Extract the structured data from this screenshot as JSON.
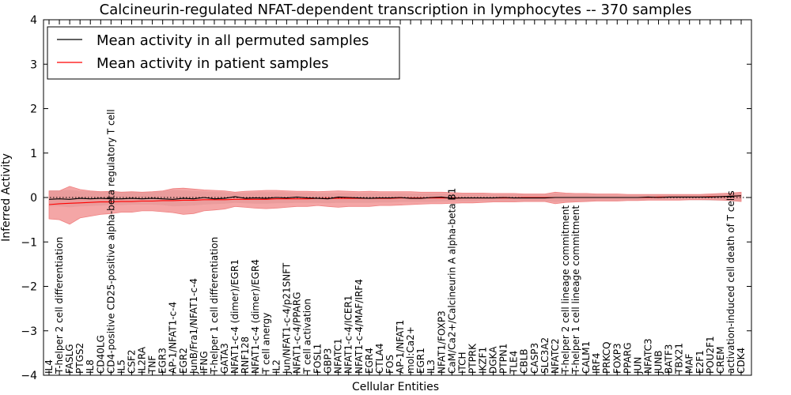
{
  "chart_data": {
    "type": "line",
    "title": "Calcineurin-regulated NFAT-dependent transcription in lymphocytes -- 370 samples",
    "xlabel": "Cellular Entities",
    "ylabel": "Inferred Activity",
    "ylim": [
      -4,
      4
    ],
    "yticks": [
      -4,
      -3,
      -2,
      -1,
      0,
      1,
      2,
      3,
      4
    ],
    "grid": false,
    "legend_position": "top-left",
    "colors": {
      "permuted": "#000000",
      "patient": "#ff0000",
      "band": "#f08080"
    },
    "categories": [
      "IL4",
      "T-helper 2 cell differentiation",
      "FASLG",
      "PTGS2",
      "IL8",
      "CD40LG",
      "CD4-positive CD25-positive alpha-beta regulatory T cell",
      "IL5",
      "CSF2",
      "IL2RA",
      "TNF",
      "EGR3",
      "AP-1/NFAT1-c-4",
      "EGR2",
      "JunB/Fra1/NFAT1-c-4",
      "IFNG",
      "T-helper 1 cell differentiation",
      "GATA3",
      "NFAT1-c-4 (dimer)/EGR1",
      "RNF128",
      "NFAT1-c-4 (dimer)/EGR4",
      "T cell anergy",
      "IL2",
      "Jun/NFAT1-c-4/p21SNFT",
      "NFAT1-c-4/PPARG",
      "T cell activation",
      "FOSL1",
      "GBP3",
      "NFATC1",
      "NFAT1-c-4/ICER1",
      "NFAT1-c-4/MAF/IRF4",
      "EGR4",
      "CTLA4",
      "FOS",
      "AP-1/NFAT1",
      "mol:Ca2+",
      "EGR1",
      "IL3",
      "NFAT1/FOXP3",
      "CaM/Ca2+/Calcineurin A alpha-beta B1",
      "ITCH",
      "PTPRK",
      "IKZF1",
      "DGKA",
      "PTPN1",
      "TLE4",
      "CBLB",
      "CASP3",
      "SLC3A2",
      "NFATC2",
      "T-helper 2 cell lineage commitment",
      "T-helper 1 cell lineage commitment",
      "CALM1",
      "IRF4",
      "PRKCQ",
      "FOXP3",
      "PPARG",
      "JUN",
      "NFATC3",
      "JUNB",
      "BATF3",
      "TBX21",
      "MAF",
      "E2F1",
      "POU2F1",
      "CREM",
      "activation-induced cell death of T cells",
      "CDK4"
    ],
    "series": [
      {
        "name": "Mean activity in all permuted samples",
        "color": "#000000",
        "values": [
          -0.04,
          -0.03,
          -0.04,
          -0.02,
          -0.03,
          -0.02,
          -0.03,
          -0.03,
          -0.02,
          -0.03,
          -0.02,
          -0.03,
          -0.04,
          -0.02,
          -0.03,
          0.0,
          -0.03,
          -0.02,
          0.02,
          -0.02,
          -0.01,
          -0.02,
          0.0,
          -0.01,
          0.01,
          -0.01,
          -0.02,
          -0.03,
          0.01,
          0.0,
          -0.01,
          -0.02,
          -0.01,
          -0.01,
          0.0,
          -0.02,
          -0.02,
          0.0,
          0.01,
          -0.02,
          -0.01,
          -0.01,
          -0.01,
          -0.01,
          0.0,
          -0.01,
          -0.01,
          -0.01,
          -0.01,
          0.0,
          0.0,
          0.0,
          0.0,
          0.0,
          0.0,
          0.0,
          0.0,
          0.0,
          0.01,
          0.0,
          0.01,
          0.01,
          0.01,
          0.01,
          0.01,
          0.02,
          0.03,
          0.04
        ]
      },
      {
        "name": "Mean activity in patient samples",
        "color": "#ff0000",
        "values": [
          -0.16,
          -0.14,
          -0.13,
          -0.12,
          -0.11,
          -0.1,
          -0.1,
          -0.09,
          -0.09,
          -0.08,
          -0.08,
          -0.07,
          -0.07,
          -0.06,
          -0.06,
          -0.05,
          -0.05,
          -0.05,
          -0.04,
          -0.04,
          -0.04,
          -0.04,
          -0.03,
          -0.03,
          -0.03,
          -0.03,
          -0.02,
          -0.02,
          -0.02,
          -0.02,
          -0.02,
          -0.02,
          -0.02,
          -0.02,
          -0.01,
          -0.01,
          -0.01,
          -0.01,
          -0.01,
          -0.01,
          -0.01,
          -0.01,
          -0.01,
          -0.01,
          -0.01,
          -0.01,
          0.0,
          0.0,
          0.0,
          0.0,
          0.0,
          0.0,
          0.0,
          0.0,
          0.0,
          0.0,
          0.0,
          0.0,
          0.0,
          0.01,
          0.01,
          0.01,
          0.01,
          0.01,
          0.02,
          0.02,
          0.03,
          0.04
        ],
        "band_upper": [
          0.15,
          0.15,
          0.25,
          0.18,
          0.15,
          0.13,
          0.14,
          0.12,
          0.13,
          0.12,
          0.13,
          0.15,
          0.2,
          0.21,
          0.19,
          0.17,
          0.16,
          0.15,
          0.12,
          0.14,
          0.15,
          0.16,
          0.16,
          0.15,
          0.14,
          0.14,
          0.13,
          0.14,
          0.15,
          0.14,
          0.13,
          0.14,
          0.13,
          0.13,
          0.13,
          0.13,
          0.12,
          0.12,
          0.12,
          0.11,
          0.1,
          0.1,
          0.1,
          0.09,
          0.09,
          0.09,
          0.08,
          0.08,
          0.08,
          0.12,
          0.1,
          0.09,
          0.09,
          0.08,
          0.08,
          0.08,
          0.07,
          0.07,
          0.07,
          0.07,
          0.07,
          0.07,
          0.07,
          0.07,
          0.08,
          0.09,
          0.1,
          0.12
        ],
        "band_lower": [
          -0.48,
          -0.5,
          -0.6,
          -0.46,
          -0.42,
          -0.38,
          -0.36,
          -0.33,
          -0.33,
          -0.3,
          -0.3,
          -0.32,
          -0.34,
          -0.38,
          -0.36,
          -0.3,
          -0.28,
          -0.26,
          -0.2,
          -0.22,
          -0.24,
          -0.25,
          -0.24,
          -0.22,
          -0.2,
          -0.2,
          -0.18,
          -0.2,
          -0.22,
          -0.2,
          -0.2,
          -0.2,
          -0.18,
          -0.18,
          -0.17,
          -0.16,
          -0.15,
          -0.14,
          -0.14,
          -0.13,
          -0.12,
          -0.12,
          -0.11,
          -0.1,
          -0.1,
          -0.1,
          -0.09,
          -0.09,
          -0.09,
          -0.14,
          -0.11,
          -0.1,
          -0.09,
          -0.08,
          -0.08,
          -0.08,
          -0.07,
          -0.07,
          -0.06,
          -0.06,
          -0.06,
          -0.06,
          -0.05,
          -0.05,
          -0.05,
          -0.06,
          -0.07,
          -0.09
        ]
      }
    ],
    "permuted_band_upper": [
      0.16,
      0.16,
      0.17,
      0.15,
      0.14,
      0.14,
      0.13,
      0.13,
      0.13,
      0.12,
      0.13,
      0.14,
      0.17,
      0.16,
      0.15,
      0.14,
      0.13,
      0.12,
      0.1,
      0.11,
      0.12,
      0.12,
      0.12,
      0.12,
      0.11,
      0.11,
      0.1,
      0.1,
      0.1,
      0.1,
      0.1,
      0.1,
      0.1,
      0.1,
      0.1,
      0.09,
      0.09,
      0.09,
      0.09,
      0.08,
      0.08,
      0.08,
      0.08,
      0.07,
      0.07,
      0.07,
      0.07,
      0.07,
      0.07,
      0.09,
      0.08,
      0.07,
      0.07,
      0.07,
      0.06,
      0.06,
      0.06,
      0.06,
      0.06,
      0.06,
      0.06,
      0.06,
      0.06,
      0.07,
      0.07,
      0.08,
      0.09,
      0.1
    ],
    "permuted_band_lower": [
      -0.2,
      -0.2,
      -0.22,
      -0.2,
      -0.19,
      -0.18,
      -0.17,
      -0.17,
      -0.16,
      -0.16,
      -0.16,
      -0.17,
      -0.2,
      -0.19,
      -0.18,
      -0.16,
      -0.15,
      -0.14,
      -0.12,
      -0.13,
      -0.14,
      -0.14,
      -0.13,
      -0.13,
      -0.12,
      -0.12,
      -0.12,
      -0.13,
      -0.12,
      -0.12,
      -0.12,
      -0.12,
      -0.11,
      -0.11,
      -0.1,
      -0.1,
      -0.1,
      -0.1,
      -0.09,
      -0.09,
      -0.09,
      -0.09,
      -0.08,
      -0.08,
      -0.08,
      -0.08,
      -0.08,
      -0.08,
      -0.08,
      -0.1,
      -0.09,
      -0.08,
      -0.08,
      -0.07,
      -0.07,
      -0.07,
      -0.07,
      -0.07,
      -0.06,
      -0.06,
      -0.06,
      -0.06,
      -0.06,
      -0.06,
      -0.07,
      -0.07,
      -0.08,
      -0.1
    ]
  }
}
